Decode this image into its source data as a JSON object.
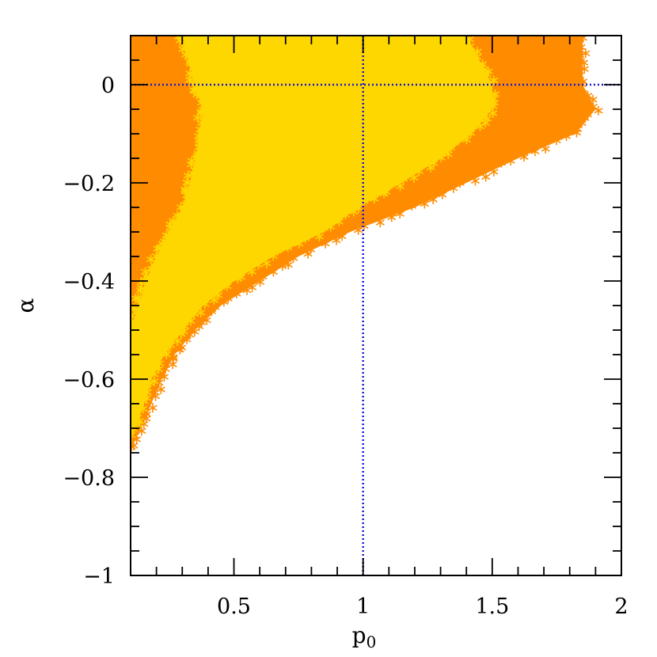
{
  "chart_data": {
    "type": "scatter",
    "title": "",
    "xlabel": "p",
    "xlabel_subscript": "0",
    "ylabel": "α",
    "xlim": [
      0.1,
      2.0
    ],
    "ylim": [
      -1.0,
      0.1
    ],
    "xticks": [
      0.5,
      1,
      1.5,
      2
    ],
    "xtick_labels": [
      "0.5",
      "1",
      "1.5",
      "2"
    ],
    "yticks": [
      0,
      -0.2,
      -0.4,
      -0.6,
      -0.8,
      -1
    ],
    "ytick_labels": [
      "0",
      "−0.2",
      "−0.4",
      "−0.6",
      "−0.8",
      "−1"
    ],
    "grid": false,
    "legend": "none",
    "reference_lines": [
      {
        "orientation": "vertical",
        "x": 1.0,
        "style": "dotted",
        "color": "#1a1acc"
      },
      {
        "orientation": "horizontal",
        "y": 0.0,
        "style": "dotted",
        "color": "#1a1acc"
      }
    ],
    "series": [
      {
        "color": "#ff8c00",
        "marker": "asterisk",
        "region": {
          "right_boundary": [
            [
              0.1,
              1.85
            ],
            [
              0.0,
              1.85
            ],
            [
              -0.05,
              1.9
            ],
            [
              -0.1,
              1.82
            ],
            [
              -0.15,
              1.6
            ],
            [
              -0.2,
              1.4
            ],
            [
              -0.25,
              1.2
            ],
            [
              -0.3,
              0.95
            ],
            [
              -0.35,
              0.75
            ],
            [
              -0.4,
              0.6
            ],
            [
              -0.45,
              0.45
            ],
            [
              -0.5,
              0.35
            ],
            [
              -0.55,
              0.27
            ],
            [
              -0.6,
              0.22
            ],
            [
              -0.65,
              0.18
            ],
            [
              -0.7,
              0.14
            ],
            [
              -0.74,
              0.1
            ]
          ]
        }
      },
      {
        "color": "#ffd700",
        "marker": "asterisk",
        "region": {
          "left_boundary": [
            [
              0.1,
              0.3
            ],
            [
              0.0,
              0.35
            ],
            [
              -0.05,
              0.38
            ],
            [
              -0.1,
              0.37
            ],
            [
              -0.15,
              0.35
            ],
            [
              -0.2,
              0.33
            ],
            [
              -0.25,
              0.3
            ],
            [
              -0.3,
              0.25
            ],
            [
              -0.35,
              0.2
            ],
            [
              -0.4,
              0.16
            ],
            [
              -0.45,
              0.13
            ],
            [
              -0.5,
              0.1
            ]
          ],
          "right_boundary": [
            [
              0.1,
              1.4
            ],
            [
              0.0,
              1.5
            ],
            [
              -0.05,
              1.5
            ],
            [
              -0.1,
              1.42
            ],
            [
              -0.15,
              1.3
            ],
            [
              -0.2,
              1.15
            ],
            [
              -0.25,
              0.98
            ],
            [
              -0.3,
              0.85
            ],
            [
              -0.35,
              0.65
            ],
            [
              -0.4,
              0.5
            ],
            [
              -0.45,
              0.38
            ],
            [
              -0.5,
              0.3
            ],
            [
              -0.55,
              0.23
            ],
            [
              -0.6,
              0.18
            ],
            [
              -0.65,
              0.15
            ],
            [
              -0.7,
              0.12
            ],
            [
              -0.72,
              0.1
            ]
          ]
        }
      }
    ]
  }
}
